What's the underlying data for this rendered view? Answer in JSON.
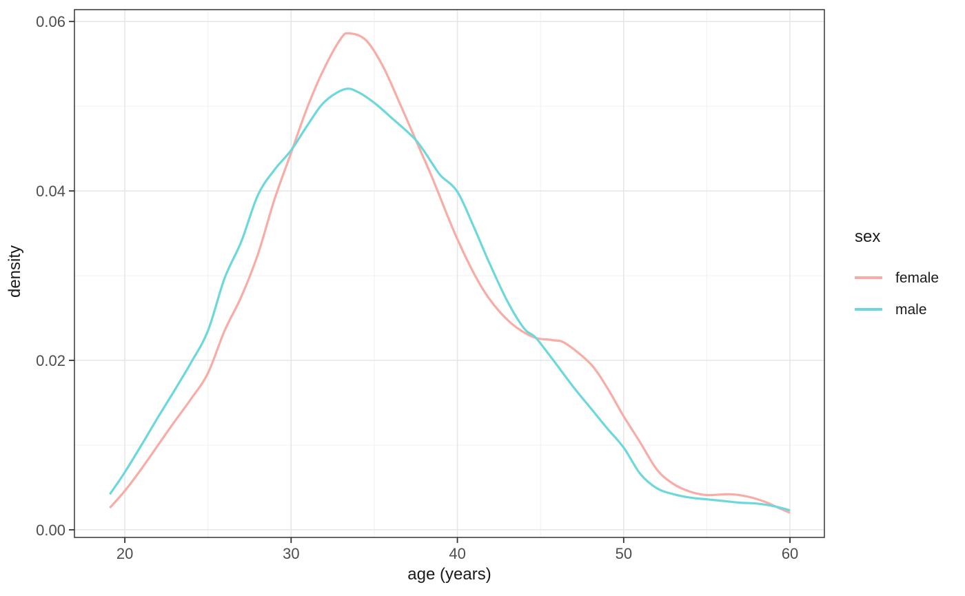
{
  "chart_data": {
    "type": "line",
    "subtype": "density",
    "title": "",
    "xlabel": "age (years)",
    "ylabel": "density",
    "grid": true,
    "legend": {
      "title": "sex",
      "position": "right",
      "entries": [
        {
          "label": "female",
          "color": "#F9ABA5"
        },
        {
          "label": "male",
          "color": "#6CD8DB"
        }
      ]
    },
    "x_axis": {
      "range": [
        16.97,
        62.07
      ],
      "ticks": [
        20,
        30,
        40,
        50,
        60
      ],
      "tick_labels": [
        "20",
        "30",
        "40",
        "50",
        "60"
      ],
      "minor_ticks": [
        25,
        35,
        45,
        55
      ]
    },
    "y_axis": {
      "range": [
        -0.0009,
        0.0614
      ],
      "ticks": [
        0,
        0.02,
        0.04,
        0.06
      ],
      "tick_labels": [
        "0.00",
        "0.02",
        "0.04",
        "0.06"
      ],
      "minor_ticks": [
        0.01,
        0.03,
        0.05
      ]
    },
    "series": [
      {
        "name": "female",
        "color": "#F9ABA5",
        "points": [
          [
            19.1,
            0.0026
          ],
          [
            20,
            0.0046
          ],
          [
            21,
            0.0072
          ],
          [
            22,
            0.01
          ],
          [
            23,
            0.0128
          ],
          [
            24,
            0.0155
          ],
          [
            25,
            0.0185
          ],
          [
            26,
            0.0235
          ],
          [
            27,
            0.0275
          ],
          [
            28,
            0.0325
          ],
          [
            29,
            0.039
          ],
          [
            30,
            0.0445
          ],
          [
            31,
            0.05
          ],
          [
            32,
            0.0545
          ],
          [
            33,
            0.058
          ],
          [
            33.5,
            0.0586
          ],
          [
            34.5,
            0.0578
          ],
          [
            35.5,
            0.0548
          ],
          [
            36.5,
            0.0505
          ],
          [
            37.5,
            0.046
          ],
          [
            38.5,
            0.0415
          ],
          [
            40,
            0.0343
          ],
          [
            41.5,
            0.0285
          ],
          [
            43,
            0.0248
          ],
          [
            44.5,
            0.0228
          ],
          [
            45.7,
            0.0224
          ],
          [
            46.5,
            0.022
          ],
          [
            48,
            0.0196
          ],
          [
            49,
            0.0168
          ],
          [
            50,
            0.0134
          ],
          [
            51,
            0.0103
          ],
          [
            52,
            0.0071
          ],
          [
            53,
            0.0054
          ],
          [
            54,
            0.0045
          ],
          [
            55,
            0.0041
          ],
          [
            56.4,
            0.0042
          ],
          [
            57.5,
            0.0039
          ],
          [
            58.5,
            0.0033
          ],
          [
            59.3,
            0.0026
          ],
          [
            60,
            0.002
          ]
        ]
      },
      {
        "name": "male",
        "color": "#6CD8DB",
        "points": [
          [
            19.1,
            0.0042
          ],
          [
            20,
            0.0068
          ],
          [
            21,
            0.01
          ],
          [
            22,
            0.0133
          ],
          [
            23,
            0.0165
          ],
          [
            24,
            0.0198
          ],
          [
            25,
            0.0235
          ],
          [
            26,
            0.0297
          ],
          [
            27,
            0.034
          ],
          [
            28,
            0.0395
          ],
          [
            29,
            0.0425
          ],
          [
            30,
            0.0448
          ],
          [
            31,
            0.0478
          ],
          [
            32,
            0.0505
          ],
          [
            33.2,
            0.052
          ],
          [
            34,
            0.0517
          ],
          [
            35,
            0.0504
          ],
          [
            36,
            0.0487
          ],
          [
            37.5,
            0.046
          ],
          [
            38.5,
            0.0432
          ],
          [
            39,
            0.0418
          ],
          [
            40,
            0.0399
          ],
          [
            41,
            0.0357
          ],
          [
            41.9,
            0.0316
          ],
          [
            43,
            0.027
          ],
          [
            44,
            0.0238
          ],
          [
            44.7,
            0.0227
          ],
          [
            45.7,
            0.0202
          ],
          [
            47,
            0.0168
          ],
          [
            48,
            0.0144
          ],
          [
            49,
            0.012
          ],
          [
            50,
            0.0097
          ],
          [
            51,
            0.0066
          ],
          [
            52,
            0.0049
          ],
          [
            53,
            0.0042
          ],
          [
            54,
            0.0038
          ],
          [
            55,
            0.0036
          ],
          [
            56,
            0.0034
          ],
          [
            57,
            0.0032
          ],
          [
            58,
            0.0031
          ],
          [
            59,
            0.0028
          ],
          [
            60,
            0.0023
          ]
        ]
      }
    ],
    "style": {
      "panel_background": "#FFFFFF",
      "panel_border_color": "#333333",
      "grid_major_color": "#E5E5E5",
      "grid_minor_color": "#F0F0F0",
      "tick_color": "#333333",
      "tick_label_color": "#4D4D4D",
      "axis_title_color": "#1A1A1A",
      "curve_width": 3.2
    }
  }
}
